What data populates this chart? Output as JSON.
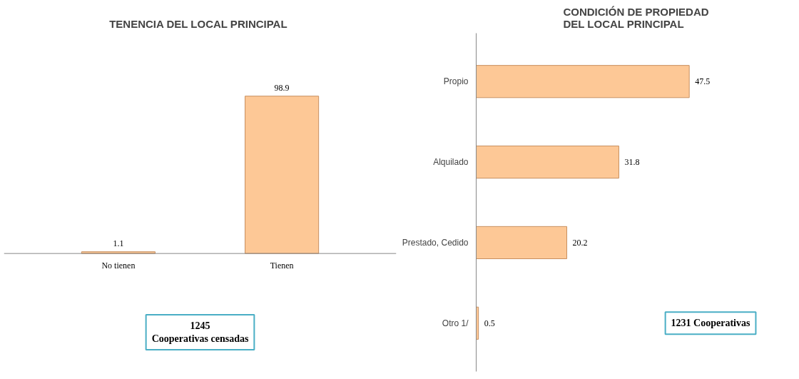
{
  "chart_data": [
    {
      "type": "bar",
      "title": "TENENCIA DEL LOCAL  PRINCIPAL",
      "categories": [
        "No tienen",
        "Tienen"
      ],
      "values": [
        1.1,
        98.9
      ],
      "color": "#fdc896",
      "data_labels": true,
      "annotations": [
        "1245\nCooperativas censadas"
      ]
    },
    {
      "type": "bar",
      "orientation": "horizontal",
      "title": "CONDICIÓN DE PROPIEDAD\nDEL LOCAL PRINCIPAL",
      "categories": [
        "Propio",
        "Alquilado",
        "Prestado, Cedido",
        "Otro 1/"
      ],
      "values": [
        47.5,
        31.8,
        20.2,
        0.5
      ],
      "color": "#fdc896",
      "data_labels": true,
      "annotations": [
        "1231 Cooperativas"
      ]
    }
  ]
}
